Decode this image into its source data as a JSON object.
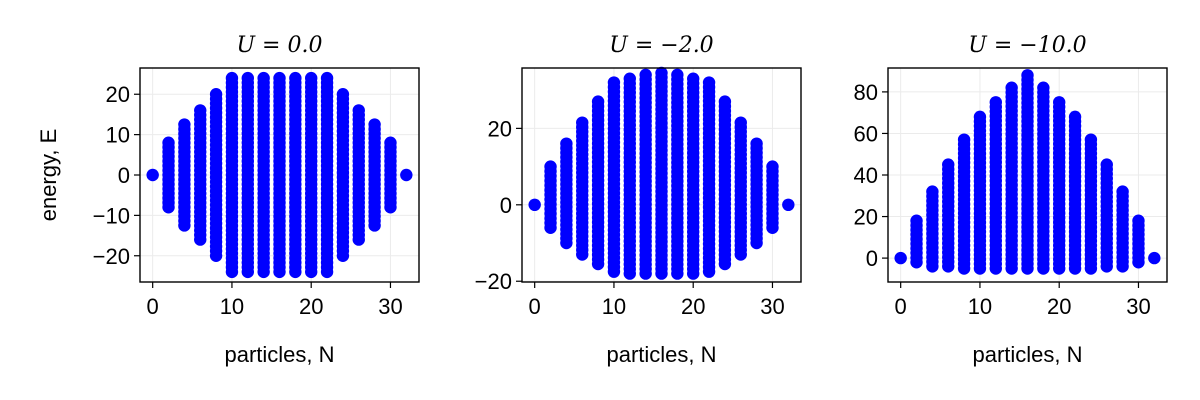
{
  "figure": {
    "background": "#ffffff"
  },
  "chart_data": [
    {
      "type": "scatter",
      "title": "U = 0.0",
      "xlabel": "particles, N",
      "ylabel": "energy, E",
      "xlim": [
        -1.6,
        33.6
      ],
      "ylim": [
        -26.5,
        26.5
      ],
      "xticks": [
        0,
        10,
        20,
        30
      ],
      "yticks": [
        -20,
        -10,
        0,
        10,
        20
      ],
      "ytick_labels": [
        "−20",
        "−10",
        "0",
        "10",
        "20"
      ],
      "grid": true,
      "marker_color": "#0000ff",
      "series": [
        {
          "x": [
            0,
            2,
            4,
            6,
            8,
            10,
            12,
            14,
            16,
            18,
            20,
            22,
            24,
            26,
            28,
            30,
            32
          ],
          "ymin": [
            0,
            -8,
            -12.5,
            -16,
            -20,
            -24,
            -24,
            -24,
            -24,
            -24,
            -24,
            -24,
            -20,
            -16,
            -12.5,
            -8,
            0
          ],
          "ymax": [
            0,
            8,
            12.5,
            16,
            20,
            24,
            24,
            24,
            24,
            24,
            24,
            24,
            20,
            16,
            12.5,
            8,
            0
          ]
        }
      ]
    },
    {
      "type": "scatter",
      "title": "U = −2.0",
      "xlabel": "particles, N",
      "ylabel": "",
      "xlim": [
        -1.6,
        33.6
      ],
      "ylim": [
        -20.2,
        35.8
      ],
      "xticks": [
        0,
        10,
        20,
        30
      ],
      "yticks": [
        -20,
        0,
        20
      ],
      "ytick_labels": [
        "−20",
        "0",
        "20"
      ],
      "grid": true,
      "marker_color": "#0000ff",
      "series": [
        {
          "x": [
            0,
            2,
            4,
            6,
            8,
            10,
            12,
            14,
            16,
            18,
            20,
            22,
            24,
            26,
            28,
            30,
            32
          ],
          "ymin": [
            0,
            -6,
            -10,
            -13,
            -15.5,
            -17.5,
            -18,
            -18,
            -18,
            -18,
            -18,
            -17.5,
            -15.5,
            -13,
            -10,
            -6,
            0
          ],
          "ymax": [
            0,
            10,
            16,
            21.5,
            27,
            32,
            33,
            34,
            34.5,
            34,
            33,
            32,
            27,
            21.5,
            16,
            10,
            0
          ]
        }
      ]
    },
    {
      "type": "scatter",
      "title": "U = −10.0",
      "xlabel": "particles, N",
      "ylabel": "",
      "xlim": [
        -1.6,
        33.6
      ],
      "ylim": [
        -11.5,
        91.5
      ],
      "xticks": [
        0,
        10,
        20,
        30
      ],
      "yticks": [
        0,
        20,
        40,
        60,
        80
      ],
      "ytick_labels": [
        "0",
        "20",
        "40",
        "60",
        "80"
      ],
      "grid": true,
      "marker_color": "#0000ff",
      "series": [
        {
          "x": [
            0,
            2,
            4,
            6,
            8,
            10,
            12,
            14,
            16,
            18,
            20,
            22,
            24,
            26,
            28,
            30,
            32
          ],
          "ymin": [
            0,
            -2,
            -4,
            -4,
            -5,
            -5,
            -5,
            -5,
            -5,
            -5,
            -5,
            -5,
            -5,
            -4,
            -4,
            -2,
            0
          ],
          "ymax": [
            0,
            18,
            32,
            45,
            57,
            68,
            75,
            82,
            88,
            82,
            75,
            68,
            57,
            45,
            32,
            18,
            0
          ]
        }
      ]
    }
  ]
}
